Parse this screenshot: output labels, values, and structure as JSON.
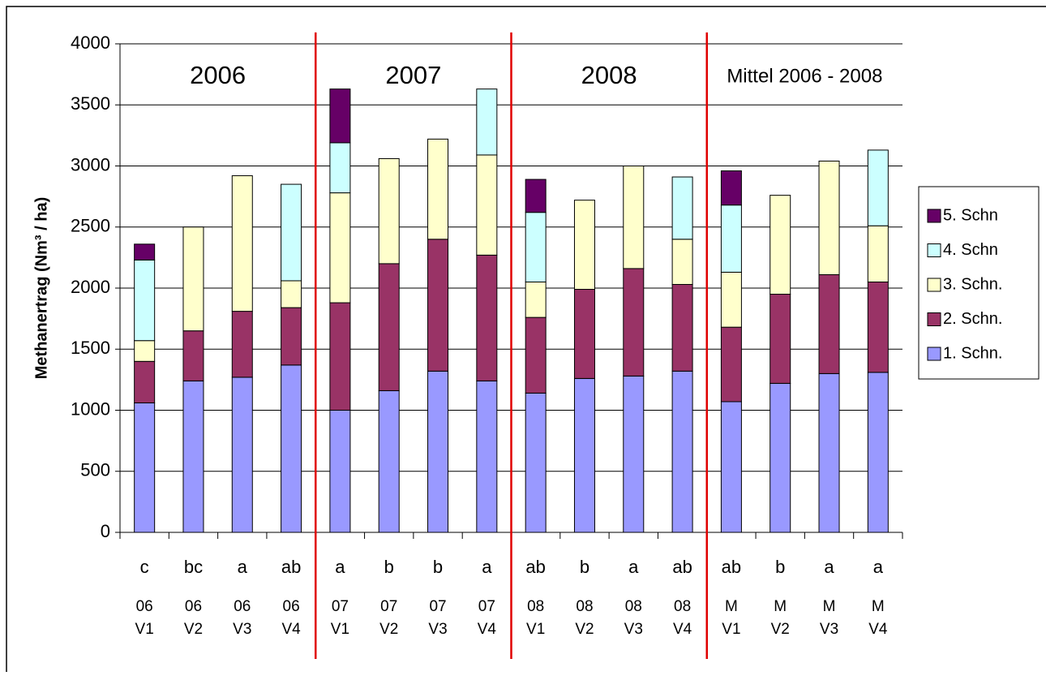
{
  "chart_data": {
    "type": "stacked-bar",
    "y_label": "Methanertrag (Nm³ / ha)",
    "categories": [
      [
        "06",
        "V1"
      ],
      [
        "06",
        "V2"
      ],
      [
        "06",
        "V3"
      ],
      [
        "06",
        "V4"
      ],
      [
        "07",
        "V1"
      ],
      [
        "07",
        "V2"
      ],
      [
        "07",
        "V3"
      ],
      [
        "07",
        "V4"
      ],
      [
        "08",
        "V1"
      ],
      [
        "08",
        "V2"
      ],
      [
        "08",
        "V3"
      ],
      [
        "08",
        "V4"
      ],
      [
        "M",
        "V1"
      ],
      [
        "M",
        "V2"
      ],
      [
        "M",
        "V3"
      ],
      [
        "M",
        "V4"
      ]
    ],
    "significance_labels": [
      "c",
      "bc",
      "a",
      "ab",
      "a",
      "b",
      "b",
      "a",
      "ab",
      "b",
      "a",
      "ab",
      "ab",
      "b",
      "a",
      "a"
    ],
    "groups": [
      "2006",
      "2007",
      "2008",
      "Mittel 2006 - 2008"
    ],
    "series": [
      {
        "name": "1. Schn.",
        "color": "#9999ff",
        "values": [
          1060,
          1240,
          1270,
          1370,
          1000,
          1160,
          1320,
          1240,
          1140,
          1260,
          1280,
          1320,
          1070,
          1220,
          1300,
          1310
        ]
      },
      {
        "name": "2. Schn.",
        "color": "#993366",
        "values": [
          340,
          410,
          540,
          470,
          880,
          1040,
          1080,
          1030,
          620,
          730,
          880,
          710,
          610,
          730,
          810,
          740
        ]
      },
      {
        "name": "3. Schn.",
        "color": "#ffffcc",
        "values": [
          170,
          850,
          1110,
          220,
          900,
          860,
          820,
          820,
          290,
          730,
          840,
          370,
          450,
          810,
          930,
          460
        ]
      },
      {
        "name": "4. Schn",
        "color": "#ccffff",
        "values": [
          660,
          0,
          0,
          790,
          410,
          0,
          0,
          540,
          570,
          0,
          0,
          510,
          550,
          0,
          0,
          620
        ]
      },
      {
        "name": "5. Schn",
        "color": "#660066",
        "values": [
          130,
          0,
          0,
          0,
          440,
          0,
          0,
          0,
          270,
          0,
          0,
          0,
          280,
          0,
          0,
          0
        ]
      }
    ],
    "ylim": [
      0,
      4000
    ],
    "yticks": [
      0,
      500,
      1000,
      1500,
      2000,
      2500,
      3000,
      3500,
      4000
    ],
    "grid": true,
    "legend": "right"
  }
}
